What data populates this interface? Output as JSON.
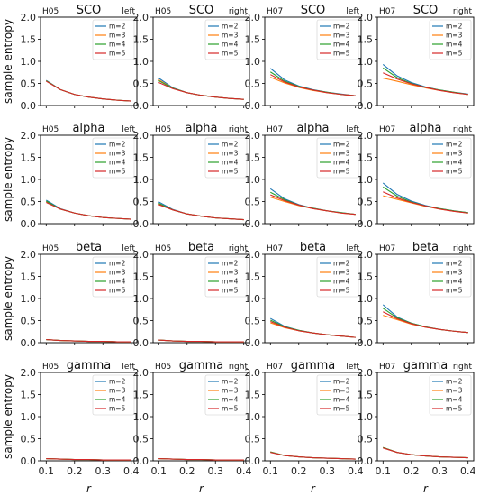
{
  "figure": {
    "ylabel": "sample entropy",
    "xlabel": "r",
    "legend_labels": [
      "m=2",
      "m=3",
      "m=4",
      "m=5"
    ],
    "series_colors": [
      "#1f77b4",
      "#ff7f0e",
      "#2ca02c",
      "#d62728"
    ],
    "rows": [
      "SCO",
      "alpha",
      "beta",
      "gamma"
    ]
  },
  "chart_data": {
    "type": "line",
    "layout": "grid-4x4",
    "x": [
      0.1,
      0.15,
      0.2,
      0.25,
      0.3,
      0.35,
      0.4
    ],
    "xlim": [
      0.08,
      0.42
    ],
    "ylim": [
      0,
      2.0
    ],
    "xticks": [
      "0.1",
      "0.2",
      "0.3",
      "0.4"
    ],
    "yticks": [
      "0.0",
      "0.5",
      "1.0",
      "1.5",
      "2.0"
    ],
    "legend_position": "upper-right",
    "grid": false,
    "panels": [
      {
        "title": "SCO",
        "subject": "H05",
        "side": "left",
        "series": [
          {
            "name": "m=2",
            "values": [
              0.57,
              0.36,
              0.25,
              0.19,
              0.15,
              0.12,
              0.1
            ]
          },
          {
            "name": "m=3",
            "values": [
              0.56,
              0.36,
              0.25,
              0.19,
              0.15,
              0.12,
              0.1
            ]
          },
          {
            "name": "m=4",
            "values": [
              0.56,
              0.36,
              0.25,
              0.19,
              0.15,
              0.12,
              0.1
            ]
          },
          {
            "name": "m=5",
            "values": [
              0.55,
              0.36,
              0.25,
              0.19,
              0.15,
              0.12,
              0.1
            ]
          }
        ]
      },
      {
        "title": "SCO",
        "subject": "H05",
        "side": "right",
        "series": [
          {
            "name": "m=2",
            "values": [
              0.62,
              0.4,
              0.29,
              0.23,
              0.19,
              0.16,
              0.14
            ]
          },
          {
            "name": "m=3",
            "values": [
              0.58,
              0.39,
              0.29,
              0.23,
              0.19,
              0.16,
              0.14
            ]
          },
          {
            "name": "m=4",
            "values": [
              0.56,
              0.39,
              0.29,
              0.23,
              0.19,
              0.16,
              0.14
            ]
          },
          {
            "name": "m=5",
            "values": [
              0.52,
              0.38,
              0.29,
              0.23,
              0.19,
              0.16,
              0.14
            ]
          }
        ]
      },
      {
        "title": "SCO",
        "subject": "H07",
        "side": "left",
        "series": [
          {
            "name": "m=2",
            "values": [
              0.84,
              0.58,
              0.44,
              0.36,
              0.3,
              0.26,
              0.22
            ]
          },
          {
            "name": "m=3",
            "values": [
              0.64,
              0.51,
              0.41,
              0.34,
              0.29,
              0.25,
              0.22
            ]
          },
          {
            "name": "m=4",
            "values": [
              0.76,
              0.55,
              0.43,
              0.35,
              0.3,
              0.25,
              0.22
            ]
          },
          {
            "name": "m=5",
            "values": [
              0.7,
              0.53,
              0.42,
              0.35,
              0.29,
              0.25,
              0.22
            ]
          }
        ]
      },
      {
        "title": "SCO",
        "subject": "H07",
        "side": "right",
        "series": [
          {
            "name": "m=2",
            "values": [
              0.93,
              0.67,
              0.52,
              0.42,
              0.35,
              0.3,
              0.26
            ]
          },
          {
            "name": "m=3",
            "values": [
              0.62,
              0.55,
              0.47,
              0.4,
              0.34,
              0.29,
              0.25
            ]
          },
          {
            "name": "m=4",
            "values": [
              0.85,
              0.63,
              0.5,
              0.41,
              0.35,
              0.3,
              0.25
            ]
          },
          {
            "name": "m=5",
            "values": [
              0.74,
              0.6,
              0.49,
              0.41,
              0.34,
              0.29,
              0.25
            ]
          }
        ]
      },
      {
        "title": "alpha",
        "subject": "H05",
        "side": "left",
        "series": [
          {
            "name": "m=2",
            "values": [
              0.53,
              0.34,
              0.24,
              0.18,
              0.14,
              0.12,
              0.1
            ]
          },
          {
            "name": "m=3",
            "values": [
              0.5,
              0.33,
              0.24,
              0.18,
              0.14,
              0.12,
              0.1
            ]
          },
          {
            "name": "m=4",
            "values": [
              0.51,
              0.33,
              0.24,
              0.18,
              0.14,
              0.12,
              0.1
            ]
          },
          {
            "name": "m=5",
            "values": [
              0.48,
              0.33,
              0.24,
              0.18,
              0.14,
              0.12,
              0.1
            ]
          }
        ]
      },
      {
        "title": "alpha",
        "subject": "H05",
        "side": "right",
        "series": [
          {
            "name": "m=2",
            "values": [
              0.49,
              0.32,
              0.22,
              0.17,
              0.13,
              0.11,
              0.09
            ]
          },
          {
            "name": "m=3",
            "values": [
              0.44,
              0.31,
              0.22,
              0.17,
              0.13,
              0.11,
              0.09
            ]
          },
          {
            "name": "m=4",
            "values": [
              0.46,
              0.31,
              0.22,
              0.17,
              0.13,
              0.11,
              0.09
            ]
          },
          {
            "name": "m=5",
            "values": [
              0.43,
              0.31,
              0.22,
              0.17,
              0.13,
              0.11,
              0.09
            ]
          }
        ]
      },
      {
        "title": "alpha",
        "subject": "H07",
        "side": "left",
        "series": [
          {
            "name": "m=2",
            "values": [
              0.79,
              0.56,
              0.43,
              0.35,
              0.29,
              0.25,
              0.21
            ]
          },
          {
            "name": "m=3",
            "values": [
              0.6,
              0.5,
              0.41,
              0.34,
              0.29,
              0.24,
              0.21
            ]
          },
          {
            "name": "m=4",
            "values": [
              0.71,
              0.54,
              0.42,
              0.35,
              0.29,
              0.25,
              0.21
            ]
          },
          {
            "name": "m=5",
            "values": [
              0.65,
              0.52,
              0.42,
              0.34,
              0.29,
              0.24,
              0.21
            ]
          }
        ]
      },
      {
        "title": "alpha",
        "subject": "H07",
        "side": "right",
        "series": [
          {
            "name": "m=2",
            "values": [
              0.92,
              0.66,
              0.51,
              0.41,
              0.34,
              0.29,
              0.25
            ]
          },
          {
            "name": "m=3",
            "values": [
              0.63,
              0.55,
              0.47,
              0.39,
              0.33,
              0.28,
              0.24
            ]
          },
          {
            "name": "m=4",
            "values": [
              0.83,
              0.62,
              0.49,
              0.4,
              0.34,
              0.29,
              0.25
            ]
          },
          {
            "name": "m=5",
            "values": [
              0.72,
              0.58,
              0.48,
              0.4,
              0.33,
              0.28,
              0.24
            ]
          }
        ]
      },
      {
        "title": "beta",
        "subject": "H05",
        "side": "left",
        "series": [
          {
            "name": "m=2",
            "values": [
              0.07,
              0.05,
              0.04,
              0.03,
              0.03,
              0.02,
              0.02
            ]
          },
          {
            "name": "m=3",
            "values": [
              0.07,
              0.05,
              0.04,
              0.03,
              0.03,
              0.02,
              0.02
            ]
          },
          {
            "name": "m=4",
            "values": [
              0.07,
              0.05,
              0.04,
              0.03,
              0.03,
              0.02,
              0.02
            ]
          },
          {
            "name": "m=5",
            "values": [
              0.07,
              0.05,
              0.04,
              0.03,
              0.03,
              0.02,
              0.02
            ]
          }
        ]
      },
      {
        "title": "beta",
        "subject": "H05",
        "side": "right",
        "series": [
          {
            "name": "m=2",
            "values": [
              0.06,
              0.04,
              0.03,
              0.03,
              0.02,
              0.02,
              0.02
            ]
          },
          {
            "name": "m=3",
            "values": [
              0.06,
              0.04,
              0.03,
              0.03,
              0.02,
              0.02,
              0.02
            ]
          },
          {
            "name": "m=4",
            "values": [
              0.06,
              0.04,
              0.03,
              0.03,
              0.02,
              0.02,
              0.02
            ]
          },
          {
            "name": "m=5",
            "values": [
              0.06,
              0.04,
              0.03,
              0.03,
              0.02,
              0.02,
              0.02
            ]
          }
        ]
      },
      {
        "title": "beta",
        "subject": "H07",
        "side": "left",
        "series": [
          {
            "name": "m=2",
            "values": [
              0.55,
              0.37,
              0.28,
              0.22,
              0.18,
              0.15,
              0.12
            ]
          },
          {
            "name": "m=3",
            "values": [
              0.45,
              0.34,
              0.27,
              0.22,
              0.18,
              0.15,
              0.12
            ]
          },
          {
            "name": "m=4",
            "values": [
              0.51,
              0.36,
              0.28,
              0.22,
              0.18,
              0.15,
              0.12
            ]
          },
          {
            "name": "m=5",
            "values": [
              0.48,
              0.35,
              0.27,
              0.22,
              0.18,
              0.15,
              0.12
            ]
          }
        ]
      },
      {
        "title": "beta",
        "subject": "H07",
        "side": "right",
        "series": [
          {
            "name": "m=2",
            "values": [
              0.86,
              0.58,
              0.44,
              0.36,
              0.3,
              0.26,
              0.23
            ]
          },
          {
            "name": "m=3",
            "values": [
              0.62,
              0.52,
              0.42,
              0.35,
              0.3,
              0.26,
              0.23
            ]
          },
          {
            "name": "m=4",
            "values": [
              0.78,
              0.56,
              0.44,
              0.36,
              0.3,
              0.26,
              0.23
            ]
          },
          {
            "name": "m=5",
            "values": [
              0.7,
              0.54,
              0.43,
              0.35,
              0.3,
              0.26,
              0.23
            ]
          }
        ]
      },
      {
        "title": "gamma",
        "subject": "H05",
        "side": "left",
        "series": [
          {
            "name": "m=2",
            "values": [
              0.05,
              0.04,
              0.03,
              0.03,
              0.02,
              0.02,
              0.02
            ]
          },
          {
            "name": "m=3",
            "values": [
              0.05,
              0.04,
              0.03,
              0.03,
              0.02,
              0.02,
              0.02
            ]
          },
          {
            "name": "m=4",
            "values": [
              0.05,
              0.04,
              0.03,
              0.03,
              0.02,
              0.02,
              0.02
            ]
          },
          {
            "name": "m=5",
            "values": [
              0.05,
              0.04,
              0.03,
              0.03,
              0.02,
              0.02,
              0.02
            ]
          }
        ]
      },
      {
        "title": "gamma",
        "subject": "H05",
        "side": "right",
        "series": [
          {
            "name": "m=2",
            "values": [
              0.05,
              0.04,
              0.03,
              0.03,
              0.02,
              0.02,
              0.02
            ]
          },
          {
            "name": "m=3",
            "values": [
              0.05,
              0.04,
              0.03,
              0.03,
              0.02,
              0.02,
              0.02
            ]
          },
          {
            "name": "m=4",
            "values": [
              0.05,
              0.04,
              0.03,
              0.03,
              0.02,
              0.02,
              0.02
            ]
          },
          {
            "name": "m=5",
            "values": [
              0.05,
              0.04,
              0.03,
              0.03,
              0.02,
              0.02,
              0.02
            ]
          }
        ]
      },
      {
        "title": "gamma",
        "subject": "H07",
        "side": "left",
        "series": [
          {
            "name": "m=2",
            "values": [
              0.2,
              0.12,
              0.09,
              0.07,
              0.06,
              0.05,
              0.04
            ]
          },
          {
            "name": "m=3",
            "values": [
              0.2,
              0.12,
              0.09,
              0.07,
              0.06,
              0.05,
              0.04
            ]
          },
          {
            "name": "m=4",
            "values": [
              0.2,
              0.12,
              0.09,
              0.07,
              0.06,
              0.05,
              0.04
            ]
          },
          {
            "name": "m=5",
            "values": [
              0.19,
              0.12,
              0.09,
              0.07,
              0.06,
              0.05,
              0.04
            ]
          }
        ]
      },
      {
        "title": "gamma",
        "subject": "H07",
        "side": "right",
        "series": [
          {
            "name": "m=2",
            "values": [
              0.3,
              0.19,
              0.14,
              0.11,
              0.09,
              0.08,
              0.07
            ]
          },
          {
            "name": "m=3",
            "values": [
              0.3,
              0.19,
              0.14,
              0.11,
              0.09,
              0.08,
              0.07
            ]
          },
          {
            "name": "m=4",
            "values": [
              0.3,
              0.19,
              0.14,
              0.11,
              0.09,
              0.08,
              0.07
            ]
          },
          {
            "name": "m=5",
            "values": [
              0.29,
              0.19,
              0.14,
              0.11,
              0.09,
              0.08,
              0.07
            ]
          }
        ]
      }
    ]
  }
}
